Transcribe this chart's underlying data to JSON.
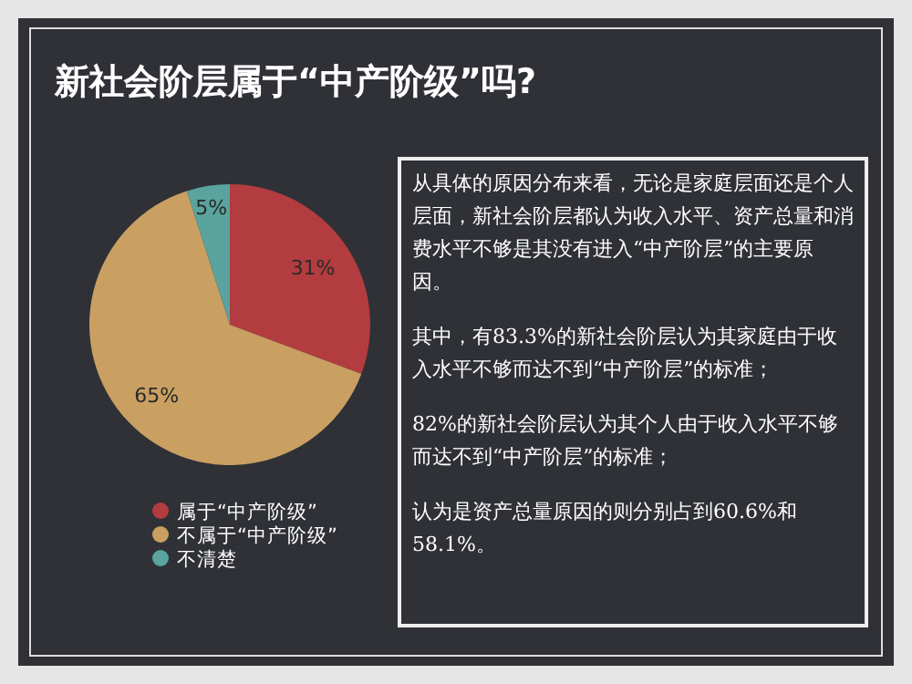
{
  "chart_data": {
    "type": "pie",
    "title": "新社会阶层属于“中产阶级”吗?",
    "categories": [
      "属于“中产阶级”",
      "不属于“中产阶级”",
      "不清楚"
    ],
    "values": [
      31,
      65,
      5
    ],
    "colors": [
      "#b23c3f",
      "#c9a062",
      "#5aa39e"
    ],
    "value_labels": [
      "31%",
      "65%",
      "5%"
    ],
    "legend": "bottom",
    "annotations": [
      "从具体的原因分布来看，无论是家庭层面还是个人层面，新社会阶层都认为收入水平、资产总量和消费水平不够是其没有进入“中产阶层”的主要原因。",
      "其中，有83.3%的新社会阶层认为其家庭由于收入水平不够而达不到“中产阶层”的标准；",
      "82%的新社会阶层认为其个人由于收入水平不够而达不到“中产阶层”的标准；",
      "认为是资产总量原因的则分别占到60.6%和58.1%。"
    ]
  }
}
